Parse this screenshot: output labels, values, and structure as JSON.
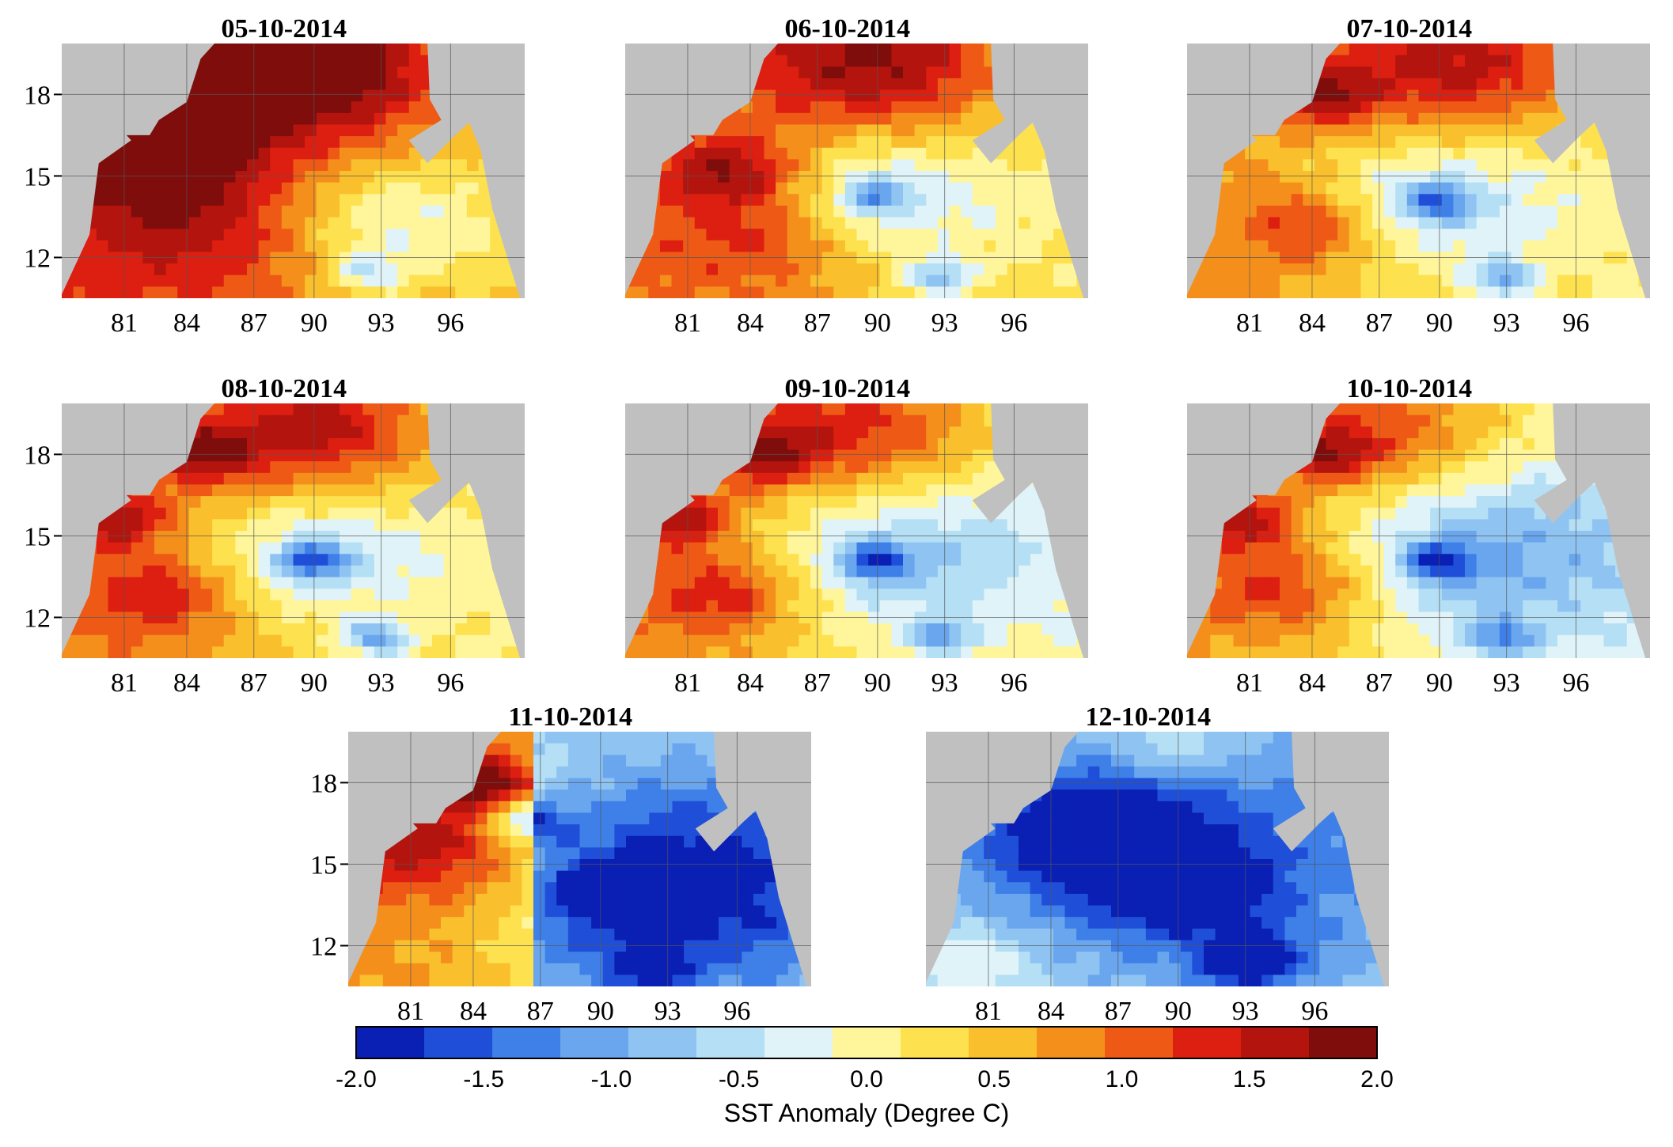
{
  "chart_data": {
    "type": "heatmap",
    "panels": [
      {
        "title": "05-10-2014"
      },
      {
        "title": "06-10-2014"
      },
      {
        "title": "07-10-2014"
      },
      {
        "title": "08-10-2014"
      },
      {
        "title": "09-10-2014"
      },
      {
        "title": "10-10-2014"
      },
      {
        "title": "11-10-2014"
      },
      {
        "title": "12-10-2014"
      }
    ],
    "x_ticks": [
      "81",
      "84",
      "87",
      "90",
      "93",
      "96"
    ],
    "y_ticks": [
      "18",
      "15",
      "12"
    ],
    "x_range": [
      78,
      100
    ],
    "y_range": [
      10.5,
      20
    ],
    "grid": true,
    "colorbar": {
      "label": "SST Anomaly (Degree C)",
      "range": [
        -2.0,
        2.0
      ],
      "tick_labels": [
        "-2.0",
        "-1.5",
        "-1.0",
        "-0.5",
        "0.0",
        "0.5",
        "1.0",
        "1.5",
        "2.0"
      ],
      "colors": [
        "#0a1fb4",
        "#1f4fd8",
        "#3f7fe8",
        "#6aa6ee",
        "#8fc4f2",
        "#b4dff5",
        "#dff3f8",
        "#fff59a",
        "#fde14e",
        "#f9bf2c",
        "#f48f1c",
        "#ee5a16",
        "#dc1f10",
        "#b4140e",
        "#7e0d0b"
      ]
    }
  }
}
